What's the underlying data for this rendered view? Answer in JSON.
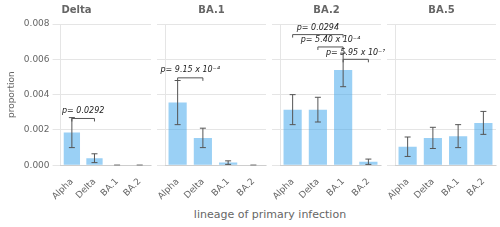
{
  "chart_data": [
    {
      "type": "bar",
      "title": "Delta",
      "categories": [
        "Alpha",
        "Delta",
        "BA.1",
        "BA.2"
      ],
      "values": [
        0.00185,
        0.0004,
        0.0,
        0.0
      ],
      "errors": [
        0.00085,
        0.00025,
        0.0,
        0.0
      ],
      "ylim": [
        0,
        0.008
      ],
      "yticks": [
        {
          "value": 0.0,
          "label": "0.000"
        },
        {
          "value": 0.002,
          "label": "0.002"
        },
        {
          "value": 0.004,
          "label": "0.004"
        },
        {
          "value": 0.006,
          "label": "0.006"
        },
        {
          "value": 0.008,
          "label": "0.008"
        }
      ],
      "ylabel": "proportion",
      "xlabel": "lineage of primary infection",
      "grid": true,
      "annotations": [
        {
          "text": "p= 0.0292",
          "from": "Alpha",
          "to": "Delta",
          "bracket_y": 0.00265,
          "y": 0.00285
        }
      ]
    },
    {
      "type": "bar",
      "title": "BA.1",
      "categories": [
        "Alpha",
        "Delta",
        "BA.1",
        "BA.2"
      ],
      "values": [
        0.00355,
        0.00155,
        0.00015,
        0.0
      ],
      "errors": [
        0.00125,
        0.00055,
        0.0001,
        0.0
      ],
      "ylim": [
        0,
        0.008
      ],
      "yticks": [
        0.0,
        0.002,
        0.004,
        0.006,
        0.008
      ],
      "tick_labels": "x",
      "grid": true,
      "annotations": [
        {
          "text": "p= 9.15 x 10⁻⁴",
          "from": "Alpha",
          "to": "Delta",
          "bracket_y": 0.00495,
          "y": 0.00515
        }
      ]
    },
    {
      "type": "bar",
      "title": "BA.2",
      "categories": [
        "Alpha",
        "Delta",
        "BA.1",
        "BA.2"
      ],
      "values": [
        0.00315,
        0.00315,
        0.0054,
        0.0002
      ],
      "errors": [
        0.00085,
        0.0007,
        0.00095,
        0.00015
      ],
      "ylim": [
        0,
        0.008
      ],
      "yticks": [
        0.0,
        0.002,
        0.004,
        0.006,
        0.008
      ],
      "tick_labels": "x",
      "grid": true,
      "annotations": [
        {
          "text": "p= 0.0294",
          "from": "Alpha",
          "to": "BA.1",
          "bracket_y": 0.0074,
          "y": 0.00755
        },
        {
          "text": "p= 5.40 x 10⁻⁴",
          "from": "Delta",
          "to": "BA.1",
          "bracket_y": 0.0067,
          "y": 0.00685
        },
        {
          "text": "p= 5.95 x 10⁻⁷",
          "from": "BA.1",
          "to": "BA.2",
          "bracket_y": 0.006,
          "y": 0.00615
        }
      ]
    },
    {
      "type": "bar",
      "title": "BA.5",
      "categories": [
        "Alpha",
        "Delta",
        "BA.1",
        "BA.2"
      ],
      "values": [
        0.00105,
        0.00155,
        0.00165,
        0.0024
      ],
      "errors": [
        0.00055,
        0.0006,
        0.00065,
        0.00065
      ],
      "ylim": [
        0,
        0.008
      ],
      "yticks": [
        0.0,
        0.002,
        0.004,
        0.006,
        0.008
      ],
      "tick_labels": "x",
      "grid": true
    }
  ]
}
